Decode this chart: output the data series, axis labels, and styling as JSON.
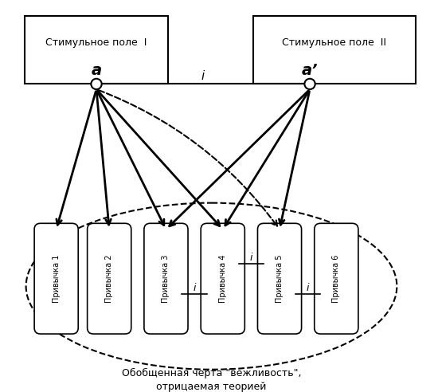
{
  "box1_label": "Стимульное поле  I",
  "box2_label": "Стимульное поле  II",
  "point_a_label": "a",
  "point_a2_label": "a’",
  "line_i_label": "i",
  "habits": [
    "Привычка 1",
    "Привычка 2",
    "Привычка 3",
    "Привычка 4",
    "Привычка 5",
    "Привычка 6"
  ],
  "ellipse_label_line1": "Обобщенная черта \"вежливость\",",
  "ellipse_label_line2": "отрицаемая теорией",
  "bg_color": "#ffffff"
}
